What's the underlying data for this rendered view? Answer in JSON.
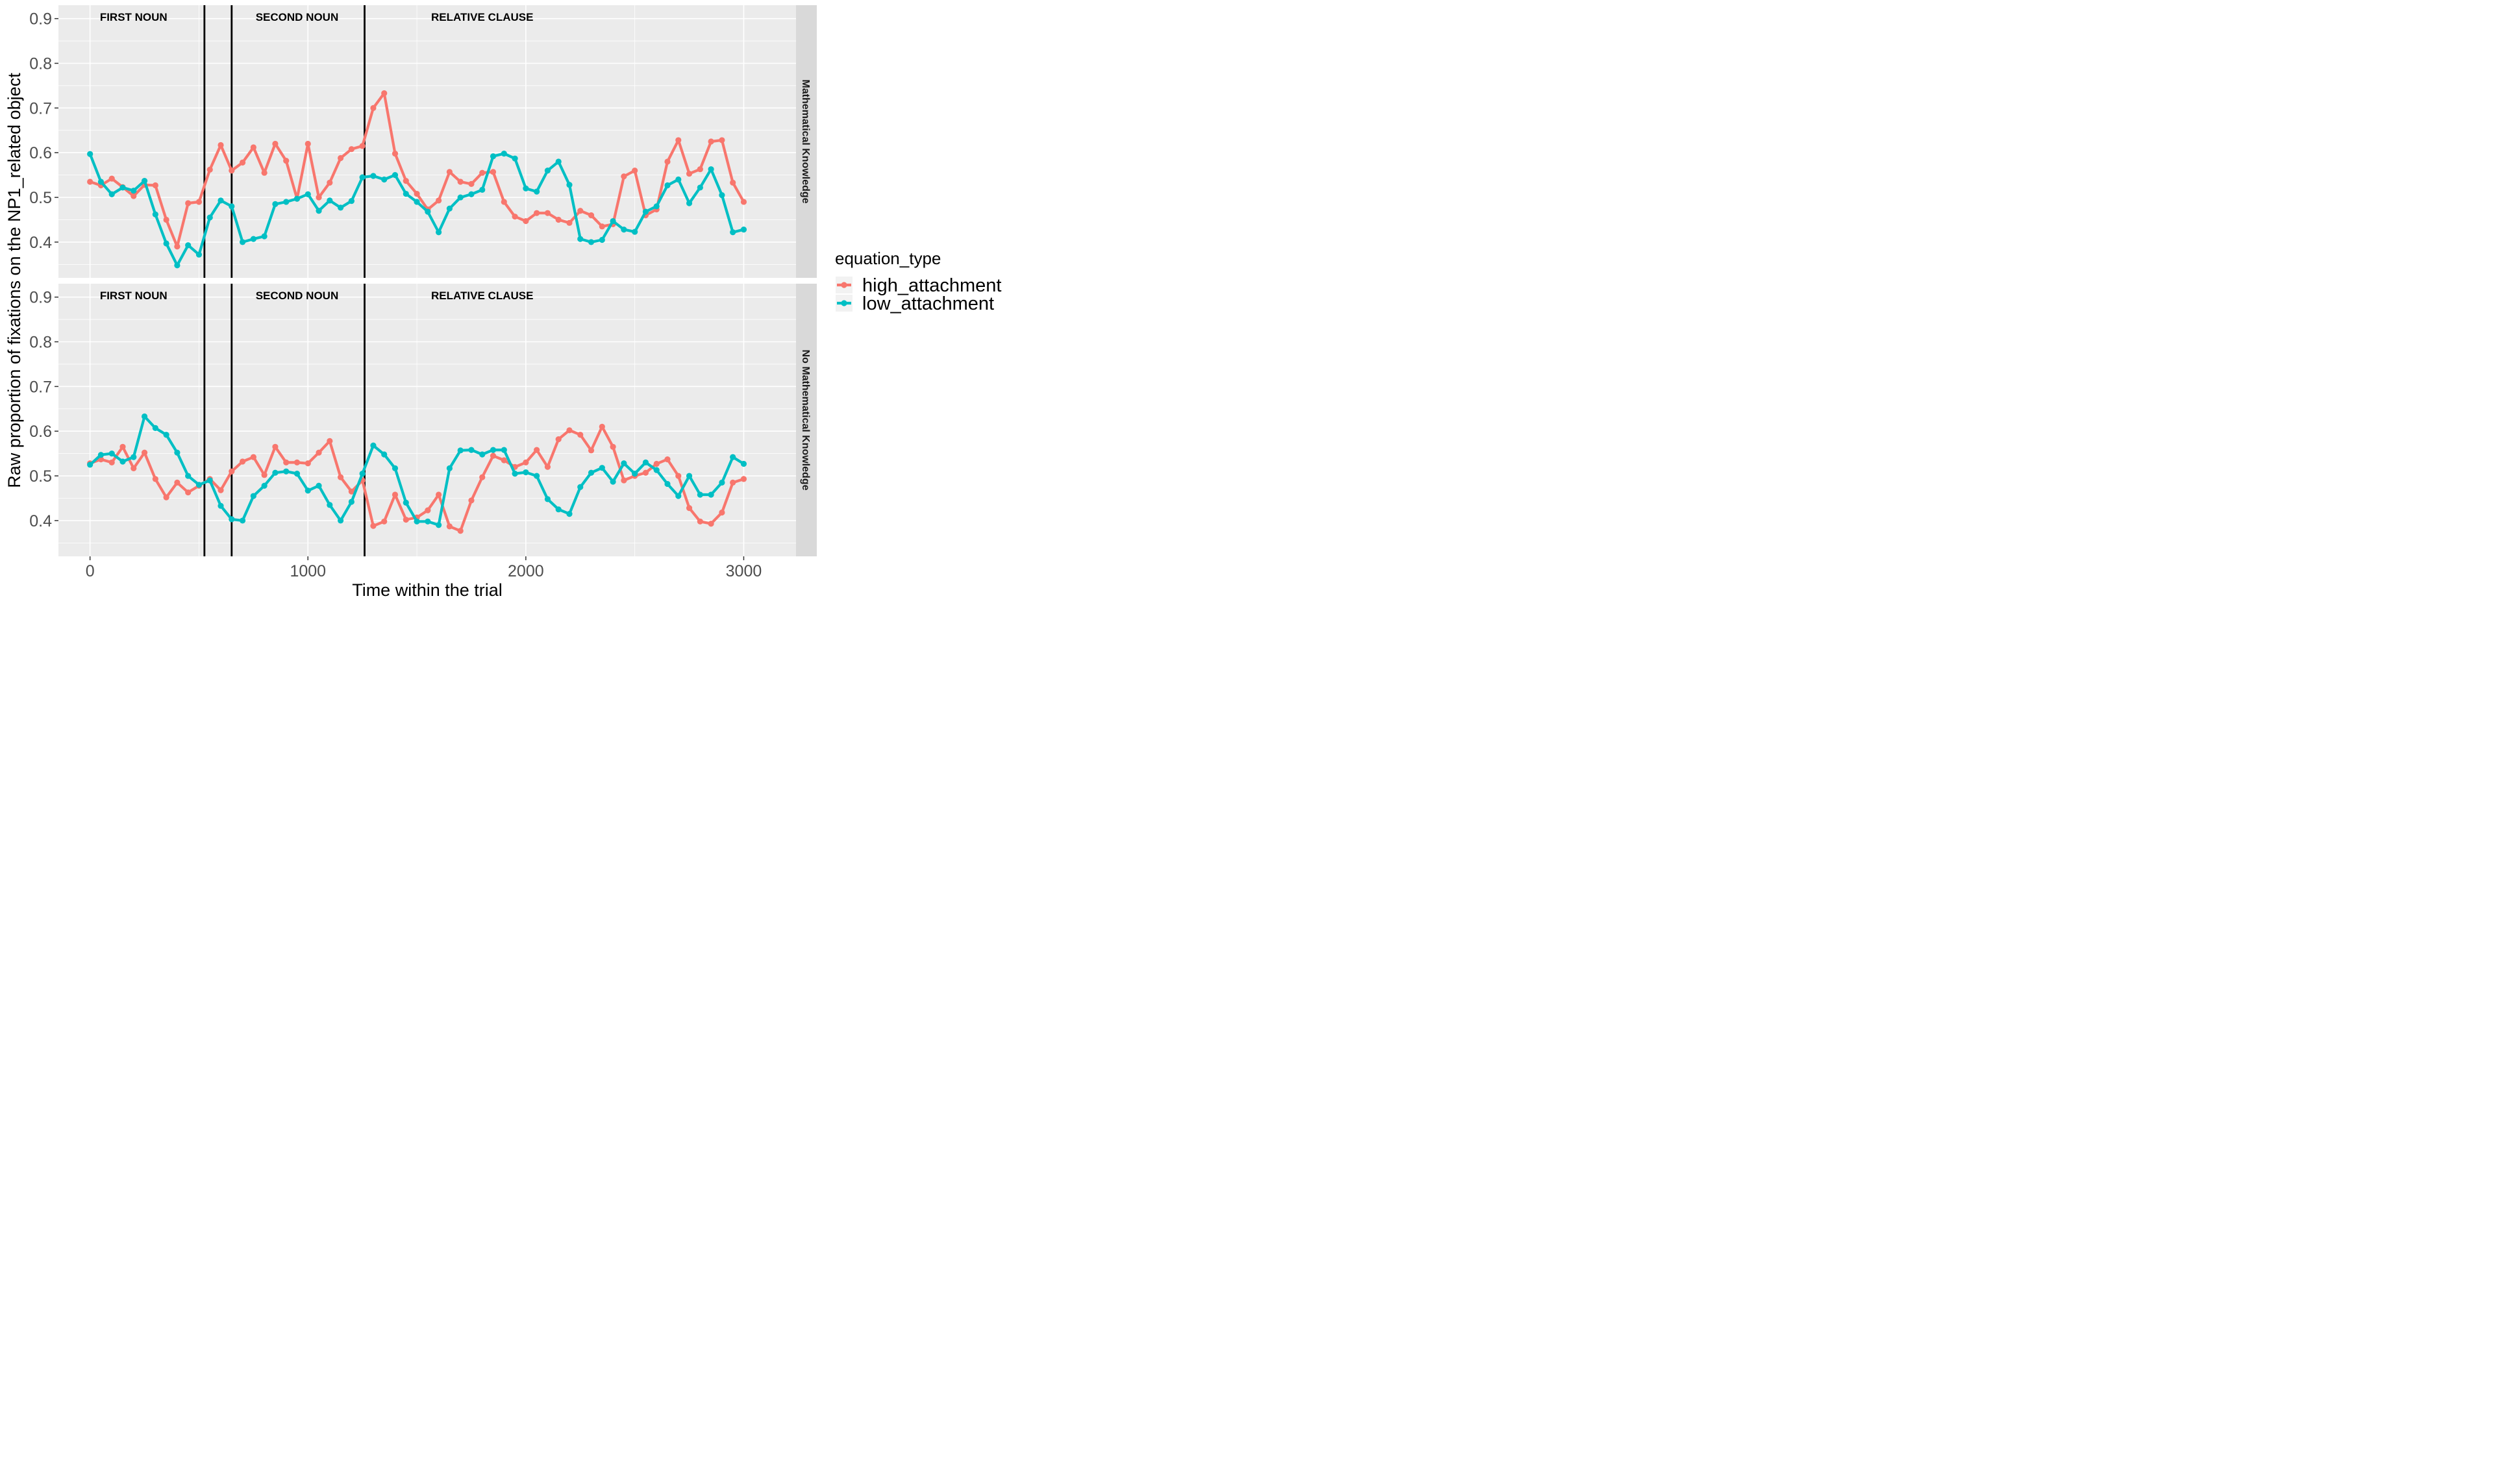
{
  "chart_data": {
    "type": "line",
    "xlabel": "Time within the trial",
    "ylabel": "Raw proportion of fixations on the NP1_related object",
    "xlim": [
      -145,
      3240
    ],
    "ylim": [
      0.32,
      0.93
    ],
    "xticks": [
      0,
      1000,
      2000,
      3000
    ],
    "xtick_labels": [
      "0",
      "1000",
      "2000",
      "3000"
    ],
    "yticks": [
      0.4,
      0.5,
      0.6,
      0.7,
      0.8,
      0.9
    ],
    "ytick_labels": [
      "0.4",
      "0.5",
      "0.6",
      "0.7",
      "0.8",
      "0.9"
    ],
    "grid": true,
    "legend": {
      "title": "equation_type",
      "position": "right",
      "entries": [
        "high_attachment",
        "low_attachment"
      ]
    },
    "colors": {
      "high_attachment": "#F8766D",
      "low_attachment": "#00BFC4"
    },
    "vlines": [
      525,
      650,
      1260
    ],
    "region_labels": [
      {
        "text": "FIRST NOUN",
        "x": 200
      },
      {
        "text": "SECOND NOUN",
        "x": 950
      },
      {
        "text": "RELATIVE CLAUSE",
        "x": 1800
      }
    ],
    "x": [
      0,
      50,
      100,
      150,
      200,
      250,
      300,
      350,
      400,
      450,
      500,
      550,
      600,
      650,
      700,
      750,
      800,
      850,
      900,
      950,
      1000,
      1050,
      1100,
      1150,
      1200,
      1250,
      1300,
      1350,
      1400,
      1450,
      1500,
      1550,
      1600,
      1650,
      1700,
      1750,
      1800,
      1850,
      1900,
      1950,
      2000,
      2050,
      2100,
      2150,
      2200,
      2250,
      2300,
      2350,
      2400,
      2450,
      2500,
      2550,
      2600,
      2650,
      2700,
      2750,
      2800,
      2850,
      2900,
      2950,
      3000
    ],
    "panels": [
      {
        "strip": "Mathematical Knowledge",
        "series": [
          {
            "name": "high_attachment",
            "values": [
              0.535,
              0.527,
              0.542,
              0.523,
              0.503,
              0.528,
              0.527,
              0.45,
              0.39,
              0.487,
              0.49,
              0.562,
              0.617,
              0.56,
              0.578,
              0.612,
              0.555,
              0.62,
              0.582,
              0.497,
              0.62,
              0.5,
              0.533,
              0.588,
              0.608,
              0.615,
              0.7,
              0.733,
              0.598,
              0.537,
              0.508,
              0.473,
              0.493,
              0.557,
              0.535,
              0.53,
              0.555,
              0.557,
              0.49,
              0.457,
              0.447,
              0.465,
              0.465,
              0.45,
              0.443,
              0.47,
              0.46,
              0.435,
              0.44,
              0.547,
              0.56,
              0.46,
              0.473,
              0.58,
              0.628,
              0.553,
              0.563,
              0.625,
              0.628,
              0.533,
              0.49
            ]
          },
          {
            "name": "low_attachment",
            "values": [
              0.597,
              0.535,
              0.507,
              0.522,
              0.515,
              0.537,
              0.462,
              0.397,
              0.348,
              0.393,
              0.372,
              0.455,
              0.493,
              0.48,
              0.4,
              0.407,
              0.413,
              0.485,
              0.49,
              0.497,
              0.507,
              0.47,
              0.493,
              0.477,
              0.492,
              0.545,
              0.548,
              0.54,
              0.55,
              0.508,
              0.49,
              0.468,
              0.422,
              0.475,
              0.5,
              0.507,
              0.517,
              0.592,
              0.598,
              0.587,
              0.52,
              0.513,
              0.56,
              0.58,
              0.528,
              0.407,
              0.4,
              0.405,
              0.447,
              0.428,
              0.423,
              0.468,
              0.48,
              0.527,
              0.54,
              0.487,
              0.522,
              0.563,
              0.505,
              0.422,
              0.428
            ]
          }
        ]
      },
      {
        "strip": "No Mathematical Knowledge",
        "series": [
          {
            "name": "high_attachment",
            "values": [
              0.528,
              0.537,
              0.53,
              0.565,
              0.517,
              0.552,
              0.493,
              0.452,
              0.485,
              0.463,
              0.478,
              0.493,
              0.468,
              0.51,
              0.532,
              0.542,
              0.502,
              0.565,
              0.53,
              0.53,
              0.528,
              0.552,
              0.578,
              0.497,
              0.465,
              0.49,
              0.388,
              0.398,
              0.458,
              0.402,
              0.407,
              0.423,
              0.458,
              0.387,
              0.377,
              0.445,
              0.497,
              0.545,
              0.535,
              0.52,
              0.53,
              0.558,
              0.52,
              0.582,
              0.602,
              0.592,
              0.557,
              0.61,
              0.565,
              0.49,
              0.5,
              0.507,
              0.527,
              0.537,
              0.5,
              0.428,
              0.398,
              0.393,
              0.418,
              0.485,
              0.493
            ]
          },
          {
            "name": "low_attachment",
            "values": [
              0.525,
              0.547,
              0.55,
              0.532,
              0.542,
              0.633,
              0.607,
              0.592,
              0.552,
              0.5,
              0.48,
              0.49,
              0.433,
              0.403,
              0.4,
              0.455,
              0.478,
              0.507,
              0.51,
              0.505,
              0.467,
              0.478,
              0.435,
              0.4,
              0.442,
              0.505,
              0.568,
              0.548,
              0.517,
              0.44,
              0.398,
              0.398,
              0.39,
              0.517,
              0.557,
              0.558,
              0.548,
              0.558,
              0.558,
              0.505,
              0.508,
              0.5,
              0.448,
              0.425,
              0.415,
              0.475,
              0.507,
              0.518,
              0.487,
              0.528,
              0.505,
              0.53,
              0.513,
              0.482,
              0.455,
              0.5,
              0.458,
              0.458,
              0.485,
              0.542,
              0.527
            ]
          }
        ]
      }
    ]
  }
}
